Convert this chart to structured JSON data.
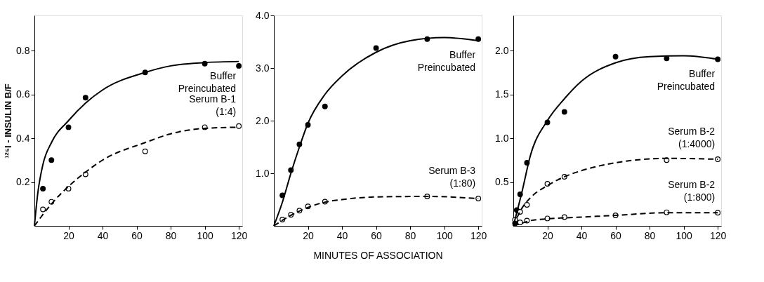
{
  "chart_data": [
    {
      "type": "line",
      "ylabel": "¹²⁵I - INSULIN B/F",
      "xlim": [
        0,
        122
      ],
      "xticks": [
        20,
        40,
        60,
        80,
        100,
        120
      ],
      "ylim": [
        0,
        0.96
      ],
      "yticks": [
        0.2,
        0.4,
        0.6,
        0.8
      ],
      "series": [
        {
          "type": "scatter",
          "color": "#000000",
          "marker": "circle",
          "x": [
            5,
            10,
            20,
            30,
            65,
            100,
            120
          ],
          "values": [
            0.17,
            0.3,
            0.45,
            0.585,
            0.7,
            0.74,
            0.73
          ]
        },
        {
          "type": "scatter",
          "color": "#ffffff",
          "marker": "circle",
          "x": [
            5,
            10,
            20,
            30,
            65,
            100,
            120
          ],
          "values": [
            0.075,
            0.11,
            0.17,
            0.235,
            0.34,
            0.45,
            0.455
          ]
        },
        {
          "name": "Buffer\nPreincubated",
          "color": "#000000",
          "line_style": "solid",
          "x": [
            0,
            2,
            5,
            10,
            20,
            30,
            40,
            65,
            80,
            100,
            120
          ],
          "values": [
            0,
            0.15,
            0.28,
            0.38,
            0.48,
            0.56,
            0.62,
            0.7,
            0.73,
            0.745,
            0.75
          ]
        },
        {
          "name": "Serum B-1\n(1:4)",
          "color": "#000000",
          "line_style": "dashed",
          "x": [
            0,
            10,
            20,
            30,
            40,
            65,
            80,
            100,
            120
          ],
          "values": [
            0,
            0.1,
            0.18,
            0.245,
            0.3,
            0.38,
            0.42,
            0.445,
            0.45
          ]
        }
      ]
    },
    {
      "type": "line",
      "xlabel": "MINUTES OF ASSOCIATION",
      "xlim": [
        0,
        122
      ],
      "xticks": [
        20,
        40,
        60,
        80,
        100,
        120
      ],
      "ylim": [
        0,
        4.0
      ],
      "yticks": [
        {
          "value": 1,
          "label": "1.0"
        },
        {
          "value": 2,
          "label": "2.0"
        },
        {
          "value": 3,
          "label": "3.0"
        },
        {
          "value": 4,
          "label": "4.0"
        }
      ],
      "series": [
        {
          "type": "scatter",
          "color": "#000000",
          "marker": "circle",
          "x": [
            5,
            10,
            15,
            20,
            30,
            60,
            90,
            120
          ],
          "values": [
            0.58,
            1.06,
            1.55,
            1.92,
            2.27,
            3.38,
            3.55,
            3.55
          ]
        },
        {
          "type": "scatter",
          "color": "#ffffff",
          "marker": "circle",
          "x": [
            5,
            10,
            15,
            20,
            30,
            90,
            120
          ],
          "values": [
            0.12,
            0.21,
            0.29,
            0.37,
            0.46,
            0.56,
            0.52
          ]
        },
        {
          "name": "Buffer\nPreincubated",
          "color": "#000000",
          "line_style": "solid",
          "x": [
            0,
            5,
            10,
            15,
            20,
            30,
            40,
            60,
            80,
            100,
            120
          ],
          "values": [
            0,
            0.45,
            1.0,
            1.5,
            1.95,
            2.5,
            2.85,
            3.3,
            3.52,
            3.58,
            3.52
          ]
        },
        {
          "name": "Serum B-3\n(1:80)",
          "color": "#000000",
          "line_style": "dashed",
          "x": [
            0,
            10,
            20,
            30,
            40,
            60,
            90,
            120
          ],
          "values": [
            0,
            0.2,
            0.35,
            0.45,
            0.5,
            0.55,
            0.56,
            0.52
          ]
        }
      ]
    },
    {
      "type": "line",
      "xlim": [
        0,
        122
      ],
      "xticks": [
        20,
        40,
        60,
        80,
        100,
        120
      ],
      "ylim": [
        0,
        2.4
      ],
      "yticks": [
        0.5,
        {
          "value": 1,
          "label": "1.0"
        },
        1.5,
        {
          "value": 2,
          "label": "2.0"
        }
      ],
      "series": [
        {
          "type": "scatter",
          "color": "#000000",
          "marker": "circle",
          "x": [
            1,
            2,
            4,
            8,
            20,
            30,
            60,
            90,
            120
          ],
          "values": [
            0.03,
            0.18,
            0.36,
            0.72,
            1.18,
            1.3,
            1.93,
            1.91,
            1.9
          ]
        },
        {
          "type": "scatter",
          "color": "#ffffff",
          "marker": "circle",
          "x": [
            1,
            4,
            8,
            20,
            30,
            90,
            120
          ],
          "values": [
            0.07,
            0.16,
            0.24,
            0.48,
            0.56,
            0.75,
            0.76
          ]
        },
        {
          "type": "scatter",
          "color": "#ffffff",
          "marker": "circle",
          "x": [
            4,
            8,
            20,
            30,
            60,
            90,
            120
          ],
          "values": [
            0.04,
            0.06,
            0.085,
            0.1,
            0.12,
            0.155,
            0.15
          ]
        },
        {
          "name": "Buffer\nPreincubated",
          "color": "#000000",
          "line_style": "solid",
          "x": [
            0,
            5,
            10,
            20,
            30,
            40,
            60,
            80,
            100,
            120
          ],
          "values": [
            0,
            0.38,
            0.8,
            1.2,
            1.45,
            1.65,
            1.86,
            1.93,
            1.94,
            1.9
          ]
        },
        {
          "name": "Serum B-2\n(1:4000)",
          "color": "#000000",
          "line_style": "dashed",
          "x": [
            0,
            5,
            10,
            20,
            30,
            40,
            60,
            90,
            120
          ],
          "values": [
            0,
            0.2,
            0.32,
            0.46,
            0.56,
            0.63,
            0.72,
            0.77,
            0.76
          ]
        },
        {
          "name": "Serum B-2\n(1:800)",
          "color": "#000000",
          "line_style": "dashed",
          "x": [
            0,
            5,
            10,
            20,
            40,
            60,
            90,
            120
          ],
          "values": [
            0,
            0.03,
            0.06,
            0.08,
            0.1,
            0.12,
            0.15,
            0.15
          ]
        }
      ]
    }
  ]
}
